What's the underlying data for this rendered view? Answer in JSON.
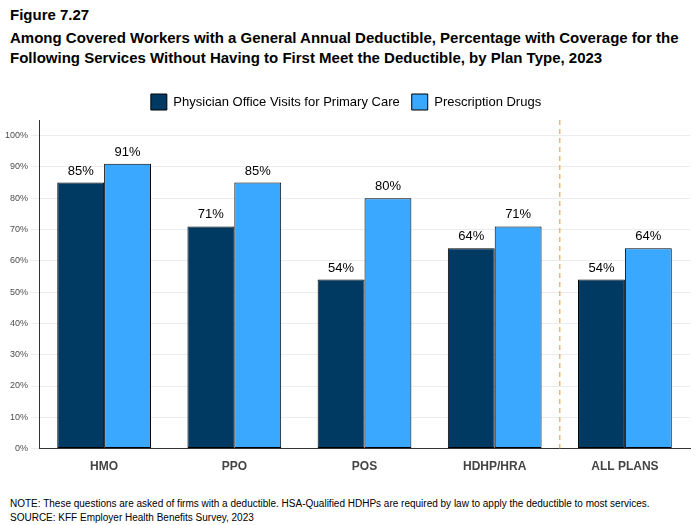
{
  "chart_data": {
    "type": "bar",
    "figure_label": "Figure 7.27",
    "title": [
      "Among Covered Workers with a General Annual Deductible, Percentage with Coverage for the",
      "Following Services Without Having to First Meet the Deductible, by Plan Type, 2023"
    ],
    "notes": [
      "NOTE: These questions are asked of firms with a deductible. HSA-Qualified HDHPs are required by law to apply the deductible to most services.",
      "SOURCE: KFF Employer Health Benefits Survey, 2023"
    ],
    "categories": [
      "HMO",
      "PPO",
      "POS",
      "HDHP/HRA",
      "ALL PLANS"
    ],
    "series": [
      {
        "name": "Physician Office Visits for Primary Care",
        "color": "#003a63",
        "values": [
          85,
          71,
          54,
          64,
          54
        ],
        "value_labels": [
          "85%",
          "71%",
          "54%",
          "64%",
          "54%"
        ]
      },
      {
        "name": "Prescription Drugs",
        "color": "#3aa8ff",
        "values": [
          91,
          85,
          80,
          71,
          64
        ],
        "value_labels": [
          "91%",
          "85%",
          "80%",
          "71%",
          "64%"
        ]
      }
    ],
    "ylim": [
      0,
      105
    ],
    "yticks": [
      {
        "value": 0,
        "label": "0%"
      },
      {
        "value": 10,
        "label": "10%"
      },
      {
        "value": 20,
        "label": "20%"
      },
      {
        "value": 30,
        "label": "30%"
      },
      {
        "value": 40,
        "label": "40%"
      },
      {
        "value": 50,
        "label": "50%"
      },
      {
        "value": 60,
        "label": "60%"
      },
      {
        "value": 70,
        "label": "70%"
      },
      {
        "value": 80,
        "label": "80%"
      },
      {
        "value": 90,
        "label": "90%"
      },
      {
        "value": 100,
        "label": "100%"
      }
    ],
    "grid": true,
    "legend": "top",
    "data_labels": true
  }
}
